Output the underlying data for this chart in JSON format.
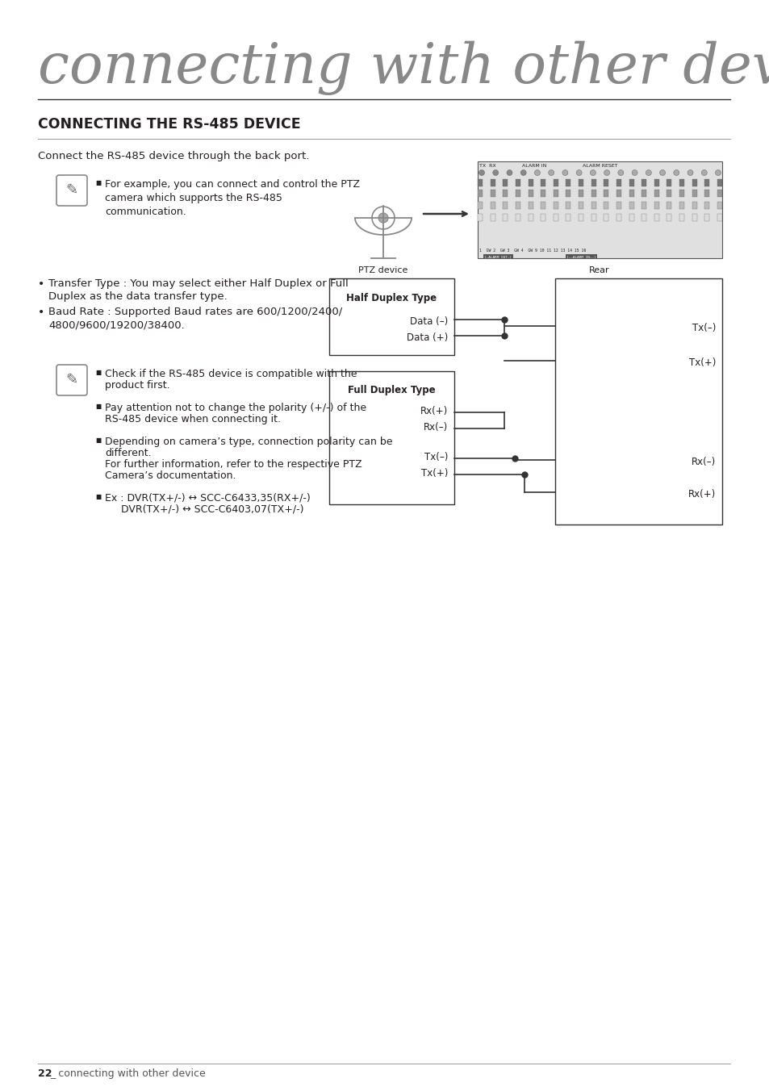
{
  "bg_color": "#ffffff",
  "title_text": "connecting with other device",
  "section_title": "CONNECTING THE RS-485 DEVICE",
  "intro_text": "Connect the RS-485 device through the back port.",
  "note1_text": "For example, you can connect and control the PTZ\ncamera which supports the RS-485\ncommunication.",
  "bullet1a": "Transfer Type : You may select either Half Duplex or Full",
  "bullet1b": "Duplex as the data transfer type.",
  "bullet2a": "Baud Rate : Supported Baud rates are 600/1200/2400/",
  "bullet2b": "4800/9600/19200/38400.",
  "note2_line1a": "Check if the RS-485 device is compatible with the",
  "note2_line1b": "product first.",
  "note2_line2a": "Pay attention not to change the polarity (+/-) of the",
  "note2_line2b": "RS-485 device when connecting it.",
  "note2_line3a": "Depending on camera’s type, connection polarity can be",
  "note2_line3b": "different.",
  "note2_line3c": "For further information, refer to the respective PTZ",
  "note2_line3d": "Camera’s documentation.",
  "note2_line4a": "Ex : DVR(TX+/-) ↔ SCC-C6433,35(RX+/-)",
  "note2_line4b": "     DVR(TX+/-) ↔ SCC-C6403,07(TX+/-)",
  "footer_bold": "22",
  "footer_text": "_ connecting with other device",
  "text_color": "#231f20",
  "gray_color": "#808080",
  "light_gray": "#cccccc",
  "diagram_color": "#333333"
}
